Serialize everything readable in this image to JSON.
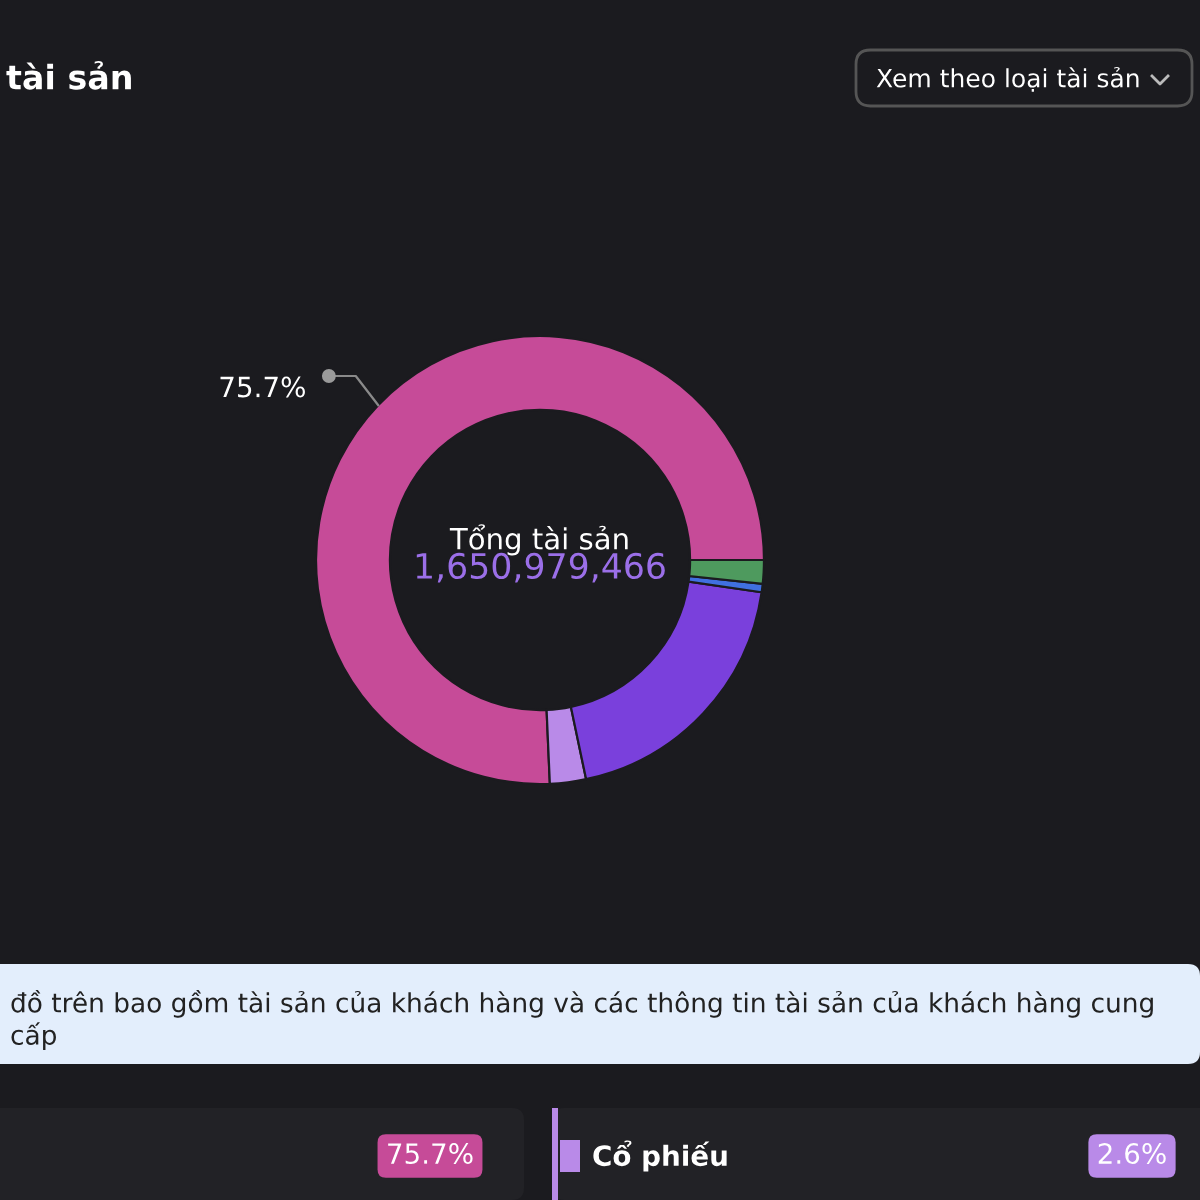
{
  "chart_data": {
    "type": "donut",
    "title": "tài sản",
    "categories": [
      null,
      "Cổ phiếu",
      null,
      null,
      null
    ],
    "values": [
      75.7,
      2.6,
      19.4,
      0.6,
      1.7
    ],
    "colors": [
      "#c64b98",
      "#b98ae8",
      "#7a40dc",
      "#4070e0",
      "#4e9a5e"
    ],
    "value_labels": [
      "75.7%",
      null,
      null,
      null,
      null
    ],
    "annotations": [
      "Xem theo loại tài sản",
      "Tổng tài sản",
      "1,650,979,466",
      "đồ trên bao gồm tài sản của khách hàng và các thông tin tài sản của khách hàng cung cấp",
      "75.7%",
      "2.6%"
    ]
  }
}
